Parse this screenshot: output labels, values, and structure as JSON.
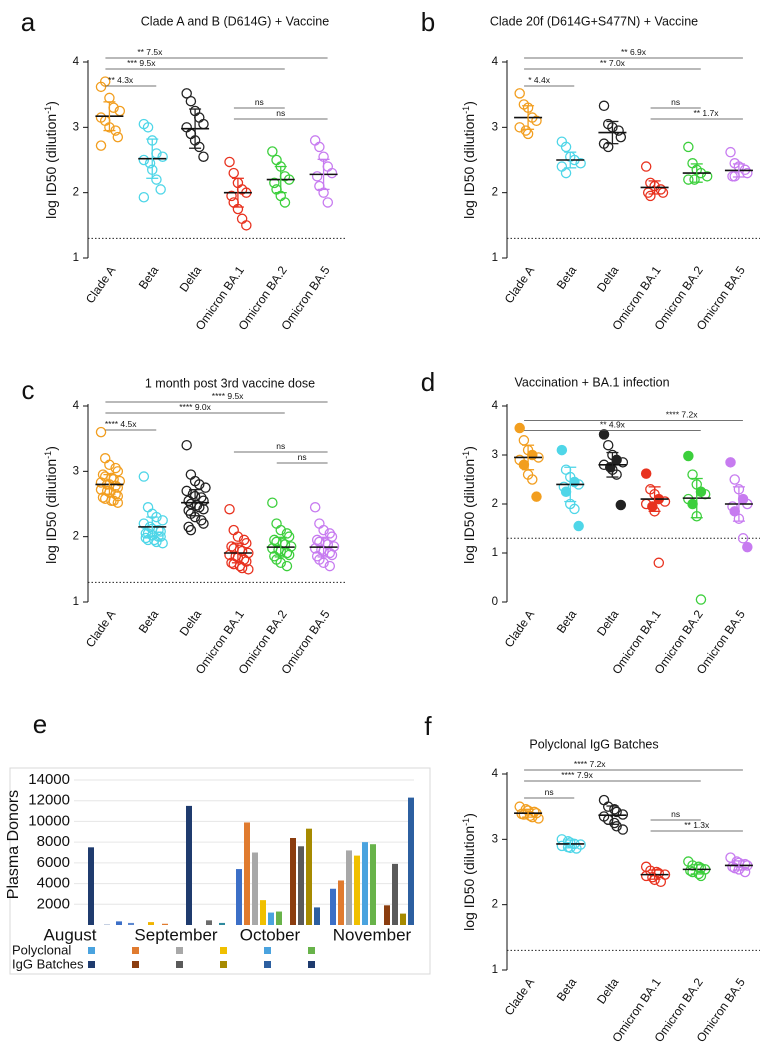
{
  "chart_data": [
    {
      "panel": "a",
      "type": "scatter",
      "title": "Clade A and B (D614G) + Vaccine",
      "ylabel": "log ID50 (dilution-1)",
      "ylim": [
        1,
        4
      ],
      "yticks": [
        "1",
        "2",
        "3",
        "4"
      ],
      "threshold": 1.3,
      "categories": [
        "Clade A",
        "Beta",
        "Delta",
        "Omicron BA.1",
        "Omicron BA.2",
        "Omicron BA.5"
      ],
      "colors": [
        "#f29e1f",
        "#4fd6e8",
        "#222222",
        "#e8321f",
        "#3ccf3c",
        "#c77bf0"
      ],
      "means": [
        3.17,
        2.52,
        2.98,
        2.0,
        2.2,
        2.28
      ],
      "sds": [
        0.22,
        0.3,
        0.3,
        0.22,
        0.2,
        0.23
      ],
      "points": [
        [
          3.62,
          3.7,
          3.45,
          3.3,
          3.25,
          3.15,
          3.1,
          3.0,
          2.95,
          2.85,
          2.72
        ],
        [
          3.05,
          3.0,
          2.8,
          2.6,
          2.55,
          2.5,
          2.45,
          2.35,
          2.2,
          2.05,
          1.93
        ],
        [
          3.52,
          3.4,
          3.25,
          3.15,
          3.05,
          3.0,
          2.9,
          2.8,
          2.7,
          2.55
        ],
        [
          2.47,
          2.3,
          2.15,
          2.05,
          2.0,
          1.95,
          1.85,
          1.75,
          1.6,
          1.5
        ],
        [
          2.63,
          2.5,
          2.4,
          2.25,
          2.2,
          2.15,
          2.05,
          1.95,
          1.85
        ],
        [
          2.8,
          2.7,
          2.55,
          2.4,
          2.3,
          2.25,
          2.1,
          2.0,
          1.85
        ]
      ],
      "comparisons": [
        {
          "from": 0,
          "to": 1,
          "label": "** 4.3x",
          "labelAt": 0.3
        },
        {
          "from": 0,
          "to": 5,
          "label": "** 7.5x",
          "labelAt": 0.2
        },
        {
          "from": 0,
          "to": 4,
          "label": "*** 9.5x",
          "labelAt": 0.2
        },
        {
          "from": 3,
          "to": 4,
          "label": "ns",
          "labelAt": 0.5
        },
        {
          "from": 3,
          "to": 5,
          "label": "ns",
          "labelAt": 0.5
        }
      ]
    },
    {
      "panel": "b",
      "type": "scatter",
      "title": "Clade 20f (D614G+S477N) + Vaccine",
      "ylabel": "log ID50 (dilution-1)",
      "ylim": [
        1,
        4
      ],
      "yticks": [
        "1",
        "2",
        "3",
        "4"
      ],
      "threshold": 1.3,
      "categories": [
        "Clade A",
        "Beta",
        "Delta",
        "Omicron BA.1",
        "Omicron BA.2",
        "Omicron BA.5"
      ],
      "colors": [
        "#f29e1f",
        "#4fd6e8",
        "#222222",
        "#e8321f",
        "#3ccf3c",
        "#c77bf0"
      ],
      "means": [
        3.15,
        2.5,
        2.92,
        2.08,
        2.3,
        2.34
      ],
      "sds": [
        0.18,
        0.12,
        0.17,
        0.1,
        0.14,
        0.1
      ],
      "points": [
        [
          3.52,
          3.35,
          3.3,
          3.15,
          3.1,
          3.0,
          2.95,
          2.9
        ],
        [
          2.78,
          2.7,
          2.55,
          2.5,
          2.45,
          2.4,
          2.3
        ],
        [
          3.33,
          3.05,
          3.0,
          2.95,
          2.85,
          2.75,
          2.7
        ],
        [
          2.4,
          2.15,
          2.1,
          2.05,
          2.0,
          2.0,
          1.95
        ],
        [
          2.7,
          2.45,
          2.35,
          2.3,
          2.25,
          2.2,
          2.2
        ],
        [
          2.62,
          2.45,
          2.4,
          2.35,
          2.3,
          2.25,
          2.25
        ]
      ],
      "comparisons": [
        {
          "from": 0,
          "to": 1,
          "label": "* 4.4x",
          "labelAt": 0.3
        },
        {
          "from": 0,
          "to": 5,
          "label": "** 6.9x",
          "labelAt": 0.5
        },
        {
          "from": 0,
          "to": 4,
          "label": "** 7.0x",
          "labelAt": 0.5
        },
        {
          "from": 3,
          "to": 4,
          "label": "ns",
          "labelAt": 0.5
        },
        {
          "from": 3,
          "to": 5,
          "label": "** 1.7x",
          "labelAt": 0.6
        }
      ]
    },
    {
      "panel": "c",
      "type": "scatter",
      "title": "1 month post 3rd vaccine dose",
      "ylabel": "log ID50 (dilution-1)",
      "ylim": [
        1,
        4
      ],
      "yticks": [
        "1",
        "2",
        "3",
        "4"
      ],
      "threshold": 1.3,
      "categories": [
        "Clade A",
        "Beta",
        "Delta",
        "Omicron BA.1",
        "Omicron BA.2",
        "Omicron BA.5"
      ],
      "colors": [
        "#f29e1f",
        "#4fd6e8",
        "#222222",
        "#e8321f",
        "#3ccf3c",
        "#c77bf0"
      ],
      "means": [
        2.8,
        2.15,
        2.52,
        1.75,
        1.84,
        1.84
      ],
      "sds": [
        0.15,
        0.15,
        0.2,
        0.15,
        0.15,
        0.15
      ],
      "points": [
        [
          3.6,
          3.2,
          3.1,
          3.05,
          3.0,
          2.95,
          2.92,
          2.9,
          2.88,
          2.85,
          2.83,
          2.8,
          2.8,
          2.78,
          2.75,
          2.72,
          2.7,
          2.68,
          2.65,
          2.62,
          2.6,
          2.58,
          2.55,
          2.55,
          2.52
        ],
        [
          2.92,
          2.45,
          2.35,
          2.3,
          2.25,
          2.2,
          2.15,
          2.12,
          2.1,
          2.08,
          2.05,
          2.05,
          2.02,
          2.0,
          2.0,
          1.98,
          1.95,
          1.95,
          1.92,
          1.9
        ],
        [
          3.4,
          2.95,
          2.85,
          2.8,
          2.75,
          2.7,
          2.65,
          2.62,
          2.6,
          2.55,
          2.55,
          2.5,
          2.48,
          2.45,
          2.42,
          2.4,
          2.35,
          2.3,
          2.25,
          2.2,
          2.15,
          2.1
        ],
        [
          2.42,
          2.1,
          2.0,
          1.95,
          1.9,
          1.85,
          1.82,
          1.8,
          1.78,
          1.75,
          1.72,
          1.7,
          1.68,
          1.65,
          1.62,
          1.6,
          1.58,
          1.55,
          1.52,
          1.5
        ],
        [
          2.52,
          2.2,
          2.1,
          2.05,
          2.0,
          1.95,
          1.92,
          1.9,
          1.88,
          1.85,
          1.82,
          1.8,
          1.78,
          1.75,
          1.72,
          1.7,
          1.65,
          1.6,
          1.55
        ],
        [
          2.45,
          2.2,
          2.1,
          2.05,
          2.0,
          1.95,
          1.92,
          1.9,
          1.88,
          1.85,
          1.82,
          1.8,
          1.78,
          1.75,
          1.72,
          1.7,
          1.65,
          1.6,
          1.55
        ]
      ],
      "comparisons": [
        {
          "from": 0,
          "to": 1,
          "label": "**** 4.5x",
          "labelAt": 0.3
        },
        {
          "from": 0,
          "to": 5,
          "label": "**** 9.5x",
          "labelAt": 0.55
        },
        {
          "from": 0,
          "to": 4,
          "label": "**** 9.0x",
          "labelAt": 0.5
        },
        {
          "from": 3,
          "to": 5,
          "label": "ns",
          "labelAt": 0.5
        },
        {
          "from": 4,
          "to": 5,
          "label": "ns",
          "labelAt": 0.5
        }
      ]
    },
    {
      "panel": "d",
      "type": "scatter",
      "title": "Vaccination + BA.1 infection",
      "ylabel": "log ID50 (dilution-1)",
      "ylim": [
        0,
        4
      ],
      "yticks": [
        "0",
        "1",
        "2",
        "3",
        "4"
      ],
      "threshold": 1.3,
      "categories": [
        "Clade A",
        "Beta",
        "Delta",
        "Omicron BA.1",
        "Omicron BA.2",
        "Omicron BA.5"
      ],
      "colors": [
        "#f29e1f",
        "#4fd6e8",
        "#222222",
        "#e8321f",
        "#3ccf3c",
        "#c77bf0"
      ],
      "means": [
        2.95,
        2.4,
        2.8,
        2.1,
        2.12,
        2.0
      ],
      "sds": [
        0.25,
        0.35,
        0.25,
        0.25,
        0.4,
        0.35
      ],
      "points": [
        [
          3.55,
          3.3,
          3.1,
          3.0,
          2.95,
          2.9,
          2.8,
          2.6,
          2.5,
          2.15
        ],
        [
          3.1,
          2.7,
          2.55,
          2.45,
          2.4,
          2.35,
          2.25,
          2.0,
          1.9,
          1.55
        ],
        [
          3.42,
          3.2,
          3.0,
          2.9,
          2.85,
          2.8,
          2.75,
          2.7,
          2.6,
          1.98
        ],
        [
          2.62,
          2.3,
          2.2,
          2.1,
          2.05,
          2.0,
          1.95,
          1.85,
          0.8
        ],
        [
          2.98,
          2.6,
          2.4,
          2.25,
          2.2,
          2.1,
          2.0,
          1.75,
          0.05
        ],
        [
          2.85,
          2.5,
          2.3,
          2.1,
          2.0,
          1.95,
          1.85,
          1.7,
          1.3,
          1.12
        ]
      ],
      "comparisons": [
        {
          "from": 0,
          "to": 4,
          "label": "**  4.9x",
          "labelAt": 0.5
        },
        {
          "from": 0,
          "to": 5,
          "label": "**** 7.2x",
          "labelAt": 0.72
        }
      ]
    },
    {
      "panel": "e",
      "type": "bar",
      "ylabel": "Plasma Donors",
      "ylim": [
        0,
        14000
      ],
      "yticks": [
        "2000",
        "4000",
        "6000",
        "8000",
        "10000",
        "12000",
        "14000"
      ],
      "months": [
        "August",
        "September",
        "October",
        "November"
      ],
      "legend": [
        "Polyclonal",
        "IgG Batches"
      ],
      "bars": [
        {
          "value": 7500,
          "color": "#1f3b6e"
        },
        {
          "value": 50,
          "color": "#8fa4c8"
        },
        {
          "value": 350,
          "color": "#3c6fc7"
        },
        {
          "value": 200,
          "color": "#5d88d0"
        },
        {
          "value": 280,
          "color": "#f0b400"
        },
        {
          "value": 120,
          "color": "#e07b2f"
        },
        {
          "value": 11500,
          "color": "#1f3b6e"
        },
        {
          "value": 450,
          "color": "#6b6b6b"
        },
        {
          "value": 200,
          "color": "#2f8a9e"
        },
        {
          "value": 5400,
          "color": "#3c6fc7"
        },
        {
          "value": 9900,
          "color": "#e07b2f"
        },
        {
          "value": 7000,
          "color": "#a8a8a8"
        },
        {
          "value": 2400,
          "color": "#f0c000"
        },
        {
          "value": 1200,
          "color": "#4aa3df"
        },
        {
          "value": 1300,
          "color": "#68b34a"
        },
        {
          "value": 8400,
          "color": "#8b3d0f"
        },
        {
          "value": 7600,
          "color": "#5a5a5a"
        },
        {
          "value": 9300,
          "color": "#a68a00"
        },
        {
          "value": 1700,
          "color": "#2c5fa0"
        },
        {
          "value": 3500,
          "color": "#3c6fc7"
        },
        {
          "value": 4300,
          "color": "#e07b2f"
        },
        {
          "value": 7200,
          "color": "#a8a8a8"
        },
        {
          "value": 6700,
          "color": "#f0c000"
        },
        {
          "value": 8000,
          "color": "#4aa3df"
        },
        {
          "value": 7800,
          "color": "#68b34a"
        },
        {
          "value": 1900,
          "color": "#8b3d0f"
        },
        {
          "value": 5900,
          "color": "#5a5a5a"
        },
        {
          "value": 1100,
          "color": "#a68a00"
        },
        {
          "value": 12300,
          "color": "#2c5fa0"
        }
      ],
      "legendRows": [
        [
          "#4aa3df",
          "#e07b2f",
          "#a8a8a8",
          "#f0c000",
          "#4aa3df",
          "#68b34a"
        ],
        [
          "#1f3b6e",
          "#8b3d0f",
          "#5a5a5a",
          "#a68a00",
          "#2c5fa0",
          "#1f3b6e"
        ]
      ]
    },
    {
      "panel": "f",
      "type": "scatter",
      "title": "Polyclonal IgG Batches",
      "ylabel": "log ID50 (dilution-1)",
      "ylim": [
        1,
        4
      ],
      "yticks": [
        "1",
        "2",
        "3",
        "4"
      ],
      "threshold": 1.3,
      "categories": [
        "Clade A",
        "Beta",
        "Delta",
        "Omicron BA.1",
        "Omicron BA.2",
        "Omicron BA.5"
      ],
      "colors": [
        "#f29e1f",
        "#4fd6e8",
        "#222222",
        "#e8321f",
        "#3ccf3c",
        "#c77bf0"
      ],
      "means": [
        3.4,
        2.93,
        3.37,
        2.46,
        2.54,
        2.6
      ],
      "sds": [
        0.06,
        0.06,
        0.14,
        0.07,
        0.07,
        0.07
      ],
      "points": [
        [
          3.5,
          3.46,
          3.44,
          3.42,
          3.4,
          3.39,
          3.38,
          3.36,
          3.34,
          3.32
        ],
        [
          3.0,
          2.97,
          2.95,
          2.93,
          2.92,
          2.9,
          2.88,
          2.87,
          2.86
        ],
        [
          3.6,
          3.5,
          3.46,
          3.42,
          3.38,
          3.35,
          3.3,
          3.25,
          3.2,
          3.15
        ],
        [
          2.58,
          2.52,
          2.5,
          2.48,
          2.46,
          2.44,
          2.42,
          2.38,
          2.35
        ],
        [
          2.66,
          2.6,
          2.58,
          2.56,
          2.54,
          2.52,
          2.5,
          2.47,
          2.44
        ],
        [
          2.72,
          2.66,
          2.64,
          2.62,
          2.6,
          2.58,
          2.56,
          2.54,
          2.5
        ]
      ],
      "comparisons": [
        {
          "from": 0,
          "to": 1,
          "label": "ns",
          "labelAt": 0.5
        },
        {
          "from": 0,
          "to": 5,
          "label": "**** 7.2x",
          "labelAt": 0.3
        },
        {
          "from": 0,
          "to": 4,
          "label": "**** 7.9x",
          "labelAt": 0.3
        },
        {
          "from": 3,
          "to": 4,
          "label": "ns",
          "labelAt": 0.5
        },
        {
          "from": 3,
          "to": 5,
          "label": "** 1.3x",
          "labelAt": 0.5
        }
      ]
    }
  ]
}
